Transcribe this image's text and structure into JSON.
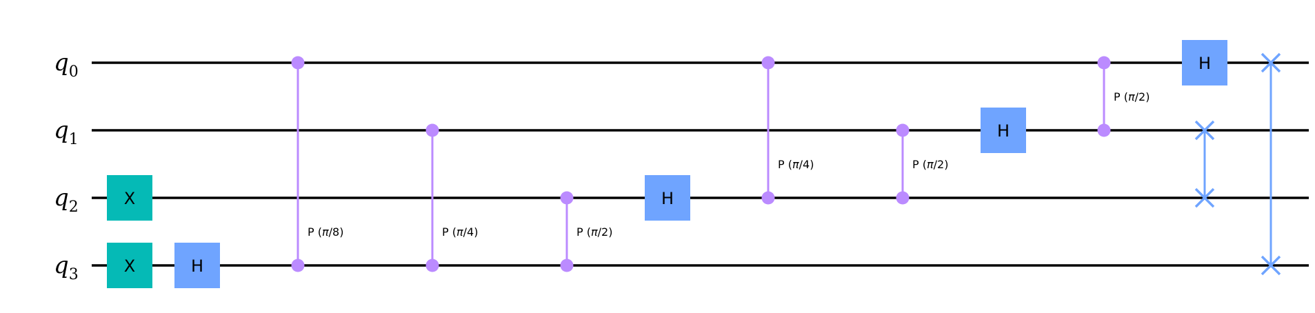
{
  "circuit": {
    "qubits": [
      {
        "label": "q",
        "index": "0"
      },
      {
        "label": "q",
        "index": "1"
      },
      {
        "label": "q",
        "index": "2"
      },
      {
        "label": "q",
        "index": "3"
      }
    ],
    "colors": {
      "x_gate": "#05bab6",
      "h_gate": "#6fa4ff",
      "phase": "#bb8bff",
      "swap": "#6fa4ff",
      "wire": "#000000"
    },
    "gates": [
      {
        "type": "box",
        "label": "X",
        "qubit": 2,
        "column": 0,
        "color": "x_gate"
      },
      {
        "type": "box",
        "label": "X",
        "qubit": 3,
        "column": 0,
        "color": "x_gate"
      },
      {
        "type": "box",
        "label": "H",
        "qubit": 3,
        "column": 1,
        "color": "h_gate"
      },
      {
        "type": "cphase",
        "label": "P (π/8)",
        "qubits": [
          0,
          3
        ],
        "column": 2
      },
      {
        "type": "cphase",
        "label": "P (π/4)",
        "qubits": [
          1,
          3
        ],
        "column": 3
      },
      {
        "type": "cphase",
        "label": "P (π/2)",
        "qubits": [
          2,
          3
        ],
        "column": 4
      },
      {
        "type": "box",
        "label": "H",
        "qubit": 2,
        "column": 5,
        "color": "h_gate"
      },
      {
        "type": "cphase",
        "label": "P (π/4)",
        "qubits": [
          0,
          2
        ],
        "column": 6
      },
      {
        "type": "cphase",
        "label": "P (π/2)",
        "qubits": [
          1,
          2
        ],
        "column": 7
      },
      {
        "type": "box",
        "label": "H",
        "qubit": 1,
        "column": 8,
        "color": "h_gate"
      },
      {
        "type": "cphase",
        "label": "P (π/2)",
        "qubits": [
          0,
          1
        ],
        "column": 9
      },
      {
        "type": "box",
        "label": "H",
        "qubit": 0,
        "column": 10,
        "color": "h_gate"
      },
      {
        "type": "swap",
        "qubits": [
          1,
          2
        ],
        "column": 10
      },
      {
        "type": "swap",
        "qubits": [
          0,
          3
        ],
        "column": 11
      }
    ]
  }
}
